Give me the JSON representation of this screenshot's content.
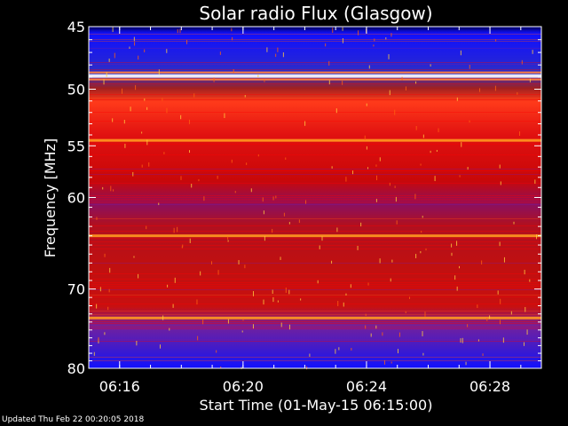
{
  "chart_data": {
    "type": "heatmap",
    "title": "Solar radio Flux (Glasgow)",
    "xlabel": "Start Time (01-May-15 06:15:00)",
    "ylabel": "Frequency [MHz]",
    "x_range": [
      "06:15:00",
      "06:29:40"
    ],
    "x_ticks": [
      "06:16",
      "06:20",
      "06:24",
      "06:28"
    ],
    "y_scale": "log",
    "y_range": [
      45,
      80
    ],
    "y_ticks": [
      45,
      50,
      55,
      60,
      70,
      80
    ],
    "colormap": [
      "#000040",
      "#1010ff",
      "#7a1aa0",
      "#ff0000",
      "#ff8000",
      "#ffff80"
    ],
    "features": [
      {
        "frequency_mhz": 48.9,
        "level": "saturated",
        "note": "steady bright band"
      },
      {
        "frequency_mhz": 54.5,
        "level": "high",
        "note": "orange band"
      },
      {
        "frequency_mhz": 64.0,
        "level": "high",
        "note": "orange band"
      },
      {
        "frequency_mhz": 73.5,
        "level": "high",
        "note": "orange band"
      }
    ]
  },
  "footer": {
    "updated": "Updated Thu Feb 22 00:20:05 2018"
  }
}
